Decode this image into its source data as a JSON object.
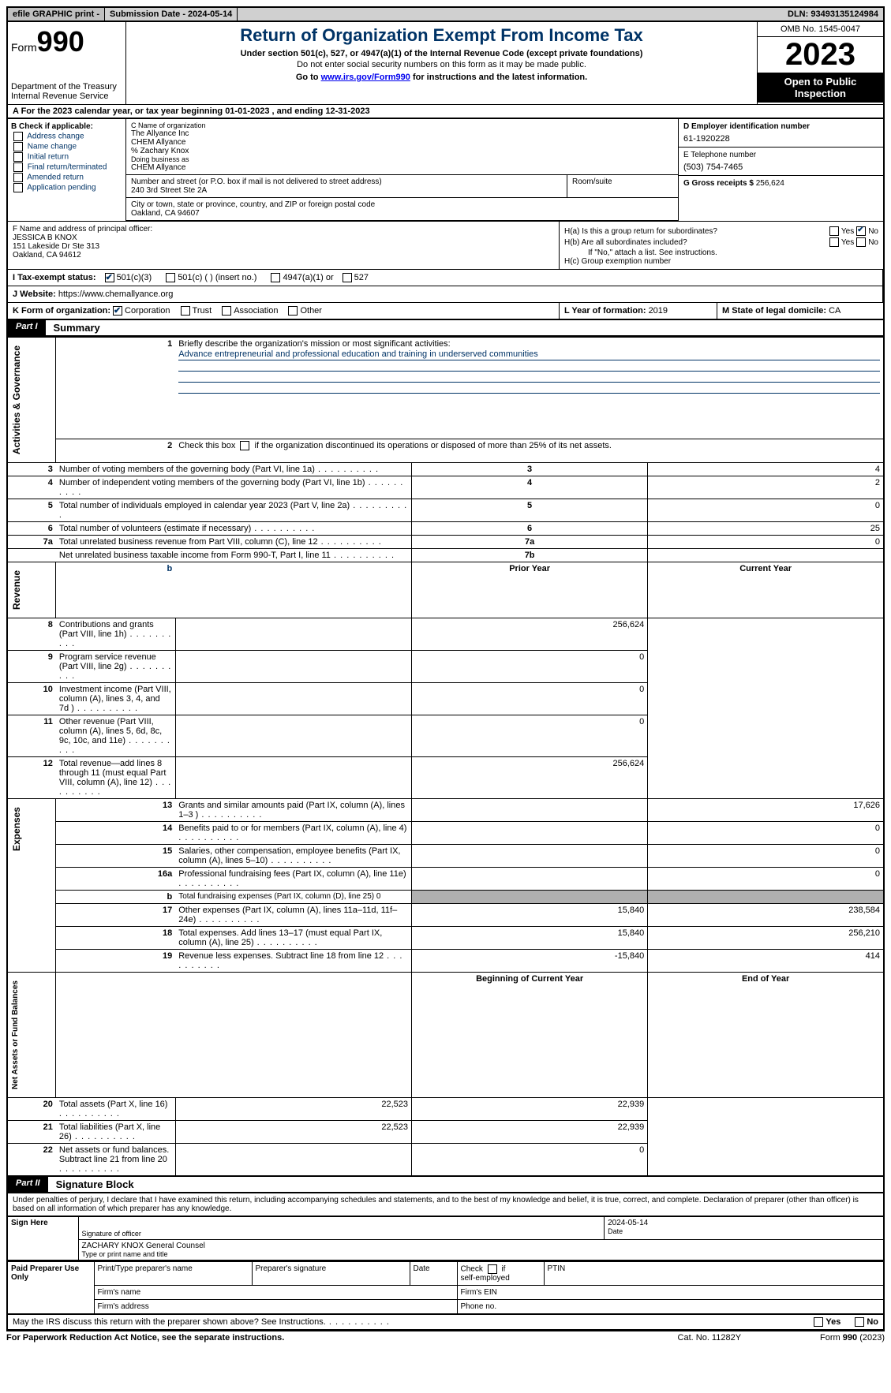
{
  "top": {
    "efile": "efile GRAPHIC print -",
    "submission_lbl": "Submission Date - 2024-05-14",
    "dln": "DLN: 93493135124984"
  },
  "header": {
    "form_prefix": "Form",
    "form_num": "990",
    "dept": "Department of the Treasury",
    "irs": "Internal Revenue Service",
    "title": "Return of Organization Exempt From Income Tax",
    "sub": "Under section 501(c), 527, or 4947(a)(1) of the Internal Revenue Code (except private foundations)",
    "note": "Do not enter social security numbers on this form as it may be made public.",
    "goto_pre": "Go to ",
    "goto_link": "www.irs.gov/Form990",
    "goto_post": " for instructions and the latest information.",
    "omb": "OMB No. 1545-0047",
    "year": "2023",
    "inspect": "Open to Public Inspection"
  },
  "a": {
    "text": "A For the 2023 calendar year, or tax year beginning 01-01-2023   , and ending 12-31-2023"
  },
  "b": {
    "lbl": "B Check if applicable:",
    "items": [
      "Address change",
      "Name change",
      "Initial return",
      "Final return/terminated",
      "Amended return",
      "Application pending"
    ]
  },
  "c": {
    "lbl_name": "C Name of organization",
    "name1": "The Allyance Inc",
    "name2": "CHEM Allyance",
    "name3": "% Zachary Knox",
    "dba_lbl": "Doing business as",
    "dba": "CHEM Allyance",
    "street_lbl": "Number and street (or P.O. box if mail is not delivered to street address)",
    "street": "240 3rd Street Ste 2A",
    "room_lbl": "Room/suite",
    "city_lbl": "City or town, state or province, country, and ZIP or foreign postal code",
    "city": "Oakland, CA  94607"
  },
  "d": {
    "lbl": "D Employer identification number",
    "val": "61-1920228"
  },
  "e": {
    "lbl": "E Telephone number",
    "val": "(503) 754-7465"
  },
  "g": {
    "lbl": "G Gross receipts $ ",
    "val": "256,624"
  },
  "f": {
    "lbl": "F  Name and address of principal officer:",
    "name": "JESSICA B KNOX",
    "addr1": "151 Lakeside Dr Ste 313",
    "addr2": "Oakland, CA  94612"
  },
  "h": {
    "a_lbl": "H(a)  Is this a group return for subordinates?",
    "b_lbl": "H(b)  Are all subordinates included?",
    "b_note": "If \"No,\" attach a list. See instructions.",
    "c_lbl": "H(c)  Group exemption number"
  },
  "i": {
    "lbl": "I  Tax-exempt status:",
    "o1": "501(c)(3)",
    "o2": "501(c) (  ) (insert no.)",
    "o3": "4947(a)(1) or",
    "o4": "527"
  },
  "j": {
    "lbl": "J  Website:",
    "val": "https://www.chemallyance.org"
  },
  "k": {
    "lbl": "K Form of organization:",
    "o1": "Corporation",
    "o2": "Trust",
    "o3": "Association",
    "o4": "Other"
  },
  "l": {
    "lbl": "L Year of formation: ",
    "val": "2019"
  },
  "m": {
    "lbl": "M State of legal domicile: ",
    "val": "CA"
  },
  "part1": {
    "tag": "Part I",
    "title": "Summary",
    "mission_lbl": "Briefly describe the organization's mission or most significant activities:",
    "mission": "Advance entrepreneurial and professional education and training in underserved communities",
    "line2": "Check this box       if the organization discontinued its operations or disposed of more than 25% of its net assets.",
    "lines_gov": [
      {
        "n": "3",
        "t": "Number of voting members of the governing body (Part VI, line 1a)",
        "r": "3",
        "v": "4"
      },
      {
        "n": "4",
        "t": "Number of independent voting members of the governing body (Part VI, line 1b)",
        "r": "4",
        "v": "2"
      },
      {
        "n": "5",
        "t": "Total number of individuals employed in calendar year 2023 (Part V, line 2a)",
        "r": "5",
        "v": "0"
      },
      {
        "n": "6",
        "t": "Total number of volunteers (estimate if necessary)",
        "r": "6",
        "v": "25"
      },
      {
        "n": "7a",
        "t": "Total unrelated business revenue from Part VIII, column (C), line 12",
        "r": "7a",
        "v": "0"
      },
      {
        "n": "",
        "t": "Net unrelated business taxable income from Form 990-T, Part I, line 11",
        "r": "7b",
        "v": ""
      }
    ],
    "col_b": "b",
    "prior_hdr": "Prior Year",
    "curr_hdr": "Current Year",
    "rev": [
      {
        "n": "8",
        "t": "Contributions and grants (Part VIII, line 1h)",
        "p": "",
        "c": "256,624"
      },
      {
        "n": "9",
        "t": "Program service revenue (Part VIII, line 2g)",
        "p": "",
        "c": "0"
      },
      {
        "n": "10",
        "t": "Investment income (Part VIII, column (A), lines 3, 4, and 7d )",
        "p": "",
        "c": "0"
      },
      {
        "n": "11",
        "t": "Other revenue (Part VIII, column (A), lines 5, 6d, 8c, 9c, 10c, and 11e)",
        "p": "",
        "c": "0"
      },
      {
        "n": "12",
        "t": "Total revenue—add lines 8 through 11 (must equal Part VIII, column (A), line 12)",
        "p": "",
        "c": "256,624"
      }
    ],
    "exp": [
      {
        "n": "13",
        "t": "Grants and similar amounts paid (Part IX, column (A), lines 1–3 )",
        "p": "",
        "c": "17,626"
      },
      {
        "n": "14",
        "t": "Benefits paid to or for members (Part IX, column (A), line 4)",
        "p": "",
        "c": "0"
      },
      {
        "n": "15",
        "t": "Salaries, other compensation, employee benefits (Part IX, column (A), lines 5–10)",
        "p": "",
        "c": "0"
      },
      {
        "n": "16a",
        "t": "Professional fundraising fees (Part IX, column (A), line 11e)",
        "p": "",
        "c": "0"
      },
      {
        "n": "b",
        "t": "Total fundraising expenses (Part IX, column (D), line 25) 0",
        "p": "SHADE",
        "c": "SHADE"
      },
      {
        "n": "17",
        "t": "Other expenses (Part IX, column (A), lines 11a–11d, 11f–24e)",
        "p": "15,840",
        "c": "238,584"
      },
      {
        "n": "18",
        "t": "Total expenses. Add lines 13–17 (must equal Part IX, column (A), line 25)",
        "p": "15,840",
        "c": "256,210"
      },
      {
        "n": "19",
        "t": "Revenue less expenses. Subtract line 18 from line 12",
        "p": "-15,840",
        "c": "414"
      }
    ],
    "beg_hdr": "Beginning of Current Year",
    "end_hdr": "End of Year",
    "net": [
      {
        "n": "20",
        "t": "Total assets (Part X, line 16)",
        "p": "22,523",
        "c": "22,939"
      },
      {
        "n": "21",
        "t": "Total liabilities (Part X, line 26)",
        "p": "22,523",
        "c": "22,939"
      },
      {
        "n": "22",
        "t": "Net assets or fund balances. Subtract line 21 from line 20",
        "p": "",
        "c": "0"
      }
    ],
    "vtabs": {
      "gov": "Activities & Governance",
      "rev": "Revenue",
      "exp": "Expenses",
      "net": "Net Assets or Fund Balances"
    }
  },
  "part2": {
    "tag": "Part II",
    "title": "Signature Block",
    "note": "Under penalties of perjury, I declare that I have examined this return, including accompanying schedules and statements, and to the best of my knowledge and belief, it is true, correct, and complete. Declaration of preparer (other than officer) is based on all information of which preparer has any knowledge."
  },
  "sign": {
    "side": "Sign Here",
    "sig_lbl": "Signature of officer",
    "date": "2024-05-14",
    "name": "ZACHARY KNOX  General Counsel",
    "name_lbl": "Type or print name and title",
    "date_lbl": "Date"
  },
  "prep": {
    "side": "Paid Preparer Use Only",
    "name_lbl": "Print/Type preparer's name",
    "sig_lbl": "Preparer's signature",
    "date_lbl": "Date",
    "self_lbl": "Check       if self-employed",
    "ptin_lbl": "PTIN",
    "firm_name": "Firm's name",
    "firm_ein": "Firm's EIN",
    "firm_addr": "Firm's address",
    "phone": "Phone no."
  },
  "discuss": "May the IRS discuss this return with the preparer shown above? See Instructions.",
  "footer": {
    "paperwork": "For Paperwork Reduction Act Notice, see the separate instructions.",
    "cat": "Cat. No. 11282Y",
    "form": "Form 990 (2023)"
  },
  "yes": "Yes",
  "no": "No"
}
